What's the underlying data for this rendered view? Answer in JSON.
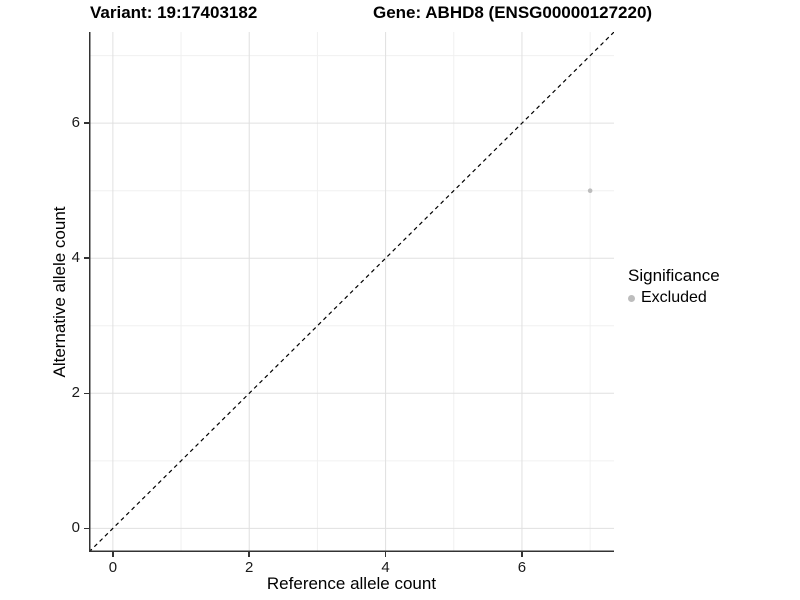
{
  "chart_data": {
    "type": "scatter",
    "header": {
      "variant": "Variant: 19:17403182",
      "gene": "Gene: ABHD8 (ENSG00000127220)"
    },
    "xlabel": "Reference allele count",
    "ylabel": "Alternative allele count",
    "xlim": [
      -0.35,
      7.35
    ],
    "ylim": [
      -0.35,
      7.35
    ],
    "xticks": [
      0,
      2,
      4,
      6
    ],
    "yticks": [
      0,
      2,
      4,
      6
    ],
    "minor_xticks": [
      1,
      3,
      5,
      7
    ],
    "minor_yticks": [
      1,
      3,
      5,
      7
    ],
    "grid": true,
    "series": [
      {
        "name": "Excluded",
        "color": "#bdbdbd",
        "points": [
          {
            "x": 7,
            "y": 5
          }
        ]
      }
    ],
    "reference_line": {
      "equation": "y = x",
      "style": "dashed",
      "color": "#000000",
      "from": [
        -0.35,
        -0.35
      ],
      "to": [
        7.35,
        7.35
      ]
    },
    "legend": {
      "title": "Significance",
      "position": "right",
      "entries": [
        {
          "label": "Excluded",
          "color": "#bdbdbd"
        }
      ]
    }
  },
  "colors": {
    "background": "#ffffff",
    "grid_major": "#e0e0e0",
    "grid_minor": "#f0f0f0",
    "axis_line": "#333333",
    "tick_text": "#1a1a1a",
    "point": "#bdbdbd",
    "reference_line": "#000000"
  }
}
